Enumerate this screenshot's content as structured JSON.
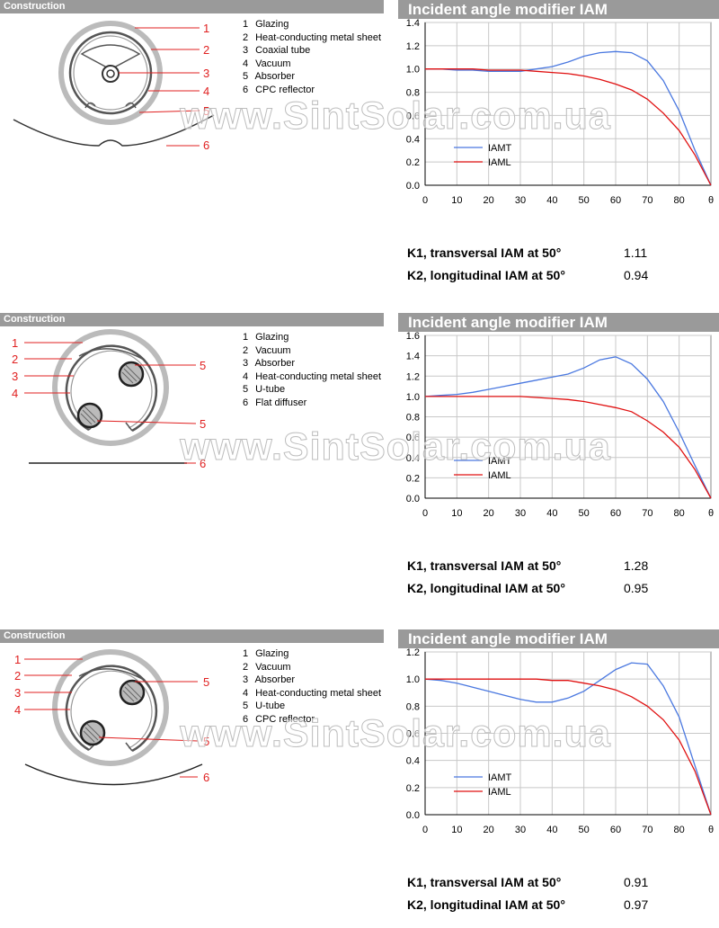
{
  "panels": [
    {
      "construction_title": "Construction",
      "components": [
        {
          "num": "1",
          "label": "Glazing"
        },
        {
          "num": "2",
          "label": "Heat-conducting metal sheet"
        },
        {
          "num": "3",
          "label": "Coaxial tube"
        },
        {
          "num": "4",
          "label": "Vacuum"
        },
        {
          "num": "5",
          "label": "Absorber"
        },
        {
          "num": "6",
          "label": "CPC reflector"
        }
      ],
      "callouts": [
        "1",
        "2",
        "3",
        "4",
        "5",
        "6"
      ],
      "iam_title": "Incident angle modifier IAM",
      "k1_label": "K1, transversal IAM at 50°",
      "k1_value": "1.11",
      "k2_label": "K2, longitudinal IAM at 50°",
      "k2_value": "0.94",
      "watermark": "www.SintSolar.com.ua"
    },
    {
      "construction_title": "Construction",
      "components": [
        {
          "num": "1",
          "label": "Glazing"
        },
        {
          "num": "2",
          "label": "Vacuum"
        },
        {
          "num": "3",
          "label": "Absorber"
        },
        {
          "num": "4",
          "label": "Heat-conducting metal sheet"
        },
        {
          "num": "5",
          "label": "U-tube"
        },
        {
          "num": "6",
          "label": "Flat diffuser"
        }
      ],
      "callouts": [
        "1",
        "2",
        "3",
        "4",
        "5",
        "5",
        "6"
      ],
      "iam_title": "Incident angle modifier IAM",
      "k1_label": "K1, transversal IAM at 50°",
      "k1_value": "1.28",
      "k2_label": "K2, longitudinal IAM at 50°",
      "k2_value": "0.95",
      "watermark": "www.SintSolar.com.ua"
    },
    {
      "construction_title": "Construction",
      "components": [
        {
          "num": "1",
          "label": "Glazing"
        },
        {
          "num": "2",
          "label": "Vacuum"
        },
        {
          "num": "3",
          "label": "Absorber"
        },
        {
          "num": "4",
          "label": "Heat-conducting metal sheet"
        },
        {
          "num": "5",
          "label": "U-tube"
        },
        {
          "num": "6",
          "label": "CPC reflector"
        }
      ],
      "callouts": [
        "1",
        "2",
        "3",
        "4",
        "5",
        "5",
        "6"
      ],
      "iam_title": "Incident angle modifier IAM",
      "k1_label": "K1, transversal IAM at 50°",
      "k1_value": "0.91",
      "k2_label": "K2, longitudinal IAM at 50°",
      "k2_value": "0.97",
      "watermark": "www.SintSolar.com.ua"
    }
  ],
  "chart_data": [
    {
      "type": "line",
      "x": [
        0,
        5,
        10,
        15,
        20,
        25,
        30,
        35,
        40,
        45,
        50,
        55,
        60,
        65,
        70,
        75,
        80,
        85,
        90
      ],
      "xticks": [
        "0",
        "10",
        "20",
        "30",
        "40",
        "50",
        "60",
        "70",
        "80",
        "θ"
      ],
      "xtick_values": [
        0,
        10,
        20,
        30,
        40,
        50,
        60,
        70,
        80,
        90
      ],
      "ylim": [
        0,
        1.4
      ],
      "yticks": [
        0,
        0.2,
        0.4,
        0.6,
        0.8,
        1.0,
        1.2,
        1.4
      ],
      "ytick_labels": [
        "0.0",
        "0.2",
        "0.4",
        "0.6",
        "0.8",
        "1.0",
        "1.2",
        "1.4"
      ],
      "grid": true,
      "legend_position": "left-bottom",
      "series": [
        {
          "name": "IAMT",
          "color": "#4a78e0",
          "values": [
            1.0,
            1.0,
            0.99,
            0.99,
            0.98,
            0.98,
            0.98,
            1.0,
            1.02,
            1.06,
            1.11,
            1.14,
            1.15,
            1.14,
            1.07,
            0.9,
            0.64,
            0.3,
            0.0
          ]
        },
        {
          "name": "IAML",
          "color": "#e01010",
          "values": [
            1.0,
            1.0,
            1.0,
            1.0,
            0.99,
            0.99,
            0.99,
            0.98,
            0.97,
            0.96,
            0.94,
            0.91,
            0.87,
            0.82,
            0.74,
            0.62,
            0.47,
            0.26,
            0.0
          ]
        }
      ]
    },
    {
      "type": "line",
      "x": [
        0,
        5,
        10,
        15,
        20,
        25,
        30,
        35,
        40,
        45,
        50,
        55,
        60,
        65,
        70,
        75,
        80,
        85,
        90
      ],
      "xticks": [
        "0",
        "10",
        "20",
        "30",
        "40",
        "50",
        "60",
        "70",
        "80",
        "θ"
      ],
      "xtick_values": [
        0,
        10,
        20,
        30,
        40,
        50,
        60,
        70,
        80,
        90
      ],
      "ylim": [
        0,
        1.6
      ],
      "yticks": [
        0,
        0.2,
        0.4,
        0.6,
        0.8,
        1.0,
        1.2,
        1.4,
        1.6
      ],
      "ytick_labels": [
        "0.0",
        "0.2",
        "0.4",
        "0.6",
        "0.8",
        "1.0",
        "1.2",
        "1.4",
        "1.6"
      ],
      "grid": true,
      "legend_position": "left-bottom",
      "series": [
        {
          "name": "IAMT",
          "color": "#4a78e0",
          "values": [
            1.0,
            1.01,
            1.02,
            1.04,
            1.07,
            1.1,
            1.13,
            1.16,
            1.19,
            1.22,
            1.28,
            1.36,
            1.39,
            1.32,
            1.17,
            0.95,
            0.65,
            0.32,
            0.0
          ]
        },
        {
          "name": "IAML",
          "color": "#e01010",
          "values": [
            1.0,
            1.0,
            1.0,
            1.0,
            1.0,
            1.0,
            1.0,
            0.99,
            0.98,
            0.97,
            0.95,
            0.92,
            0.89,
            0.85,
            0.76,
            0.65,
            0.5,
            0.28,
            0.0
          ]
        }
      ]
    },
    {
      "type": "line",
      "x": [
        0,
        5,
        10,
        15,
        20,
        25,
        30,
        35,
        40,
        45,
        50,
        55,
        60,
        65,
        70,
        75,
        80,
        85,
        90
      ],
      "xticks": [
        "0",
        "10",
        "20",
        "30",
        "40",
        "50",
        "60",
        "70",
        "80",
        "θ"
      ],
      "xtick_values": [
        0,
        10,
        20,
        30,
        40,
        50,
        60,
        70,
        80,
        90
      ],
      "ylim": [
        0,
        1.2
      ],
      "yticks": [
        0,
        0.2,
        0.4,
        0.6,
        0.8,
        1.0,
        1.2
      ],
      "ytick_labels": [
        "0.0",
        "0.2",
        "0.4",
        "0.6",
        "0.8",
        "1.0",
        "1.2"
      ],
      "grid": true,
      "legend_position": "left-bottom",
      "series": [
        {
          "name": "IAMT",
          "color": "#4a78e0",
          "values": [
            1.0,
            0.99,
            0.97,
            0.94,
            0.91,
            0.88,
            0.85,
            0.83,
            0.83,
            0.86,
            0.91,
            0.99,
            1.07,
            1.12,
            1.11,
            0.95,
            0.72,
            0.36,
            0.0
          ]
        },
        {
          "name": "IAML",
          "color": "#e01010",
          "values": [
            1.0,
            1.0,
            1.0,
            1.0,
            1.0,
            1.0,
            1.0,
            1.0,
            0.99,
            0.99,
            0.97,
            0.95,
            0.92,
            0.87,
            0.8,
            0.7,
            0.55,
            0.32,
            0.0
          ]
        }
      ]
    }
  ]
}
